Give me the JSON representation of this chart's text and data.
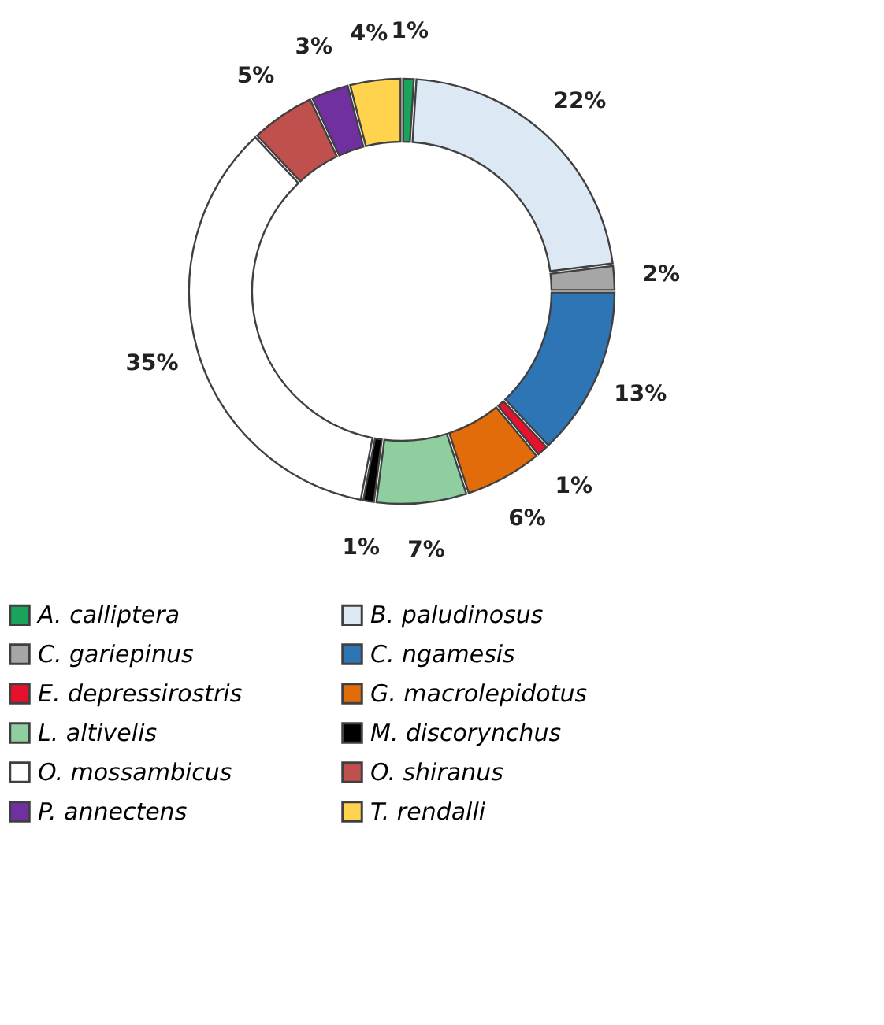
{
  "chart_data": {
    "type": "donut",
    "categories": [
      "A. calliptera",
      "B. paludinosus",
      "C. gariepinus",
      "C. ngamesis",
      "E. depressirostris",
      "G. macrolepidotus",
      "L. altivelis",
      "M. discorynchus",
      "O. mossambicus",
      "O. shiranus",
      "P. annectens",
      "T. rendalli"
    ],
    "values": [
      1,
      22,
      2,
      13,
      1,
      6,
      7,
      1,
      35,
      5,
      3,
      4
    ],
    "value_labels": [
      "1%",
      "22%",
      "2%",
      "13%",
      "1%",
      "6%",
      "7%",
      "1%",
      "35%",
      "5%",
      "3%",
      "4%"
    ],
    "colors": [
      "#1aa35a",
      "#dce9f5",
      "#a6a6a6",
      "#2e75b6",
      "#e8112d",
      "#e36c0a",
      "#8fcf9f",
      "#000000",
      "#ffffff",
      "#c0504d",
      "#7030a0",
      "#ffd34d"
    ],
    "legend": "bottom"
  }
}
